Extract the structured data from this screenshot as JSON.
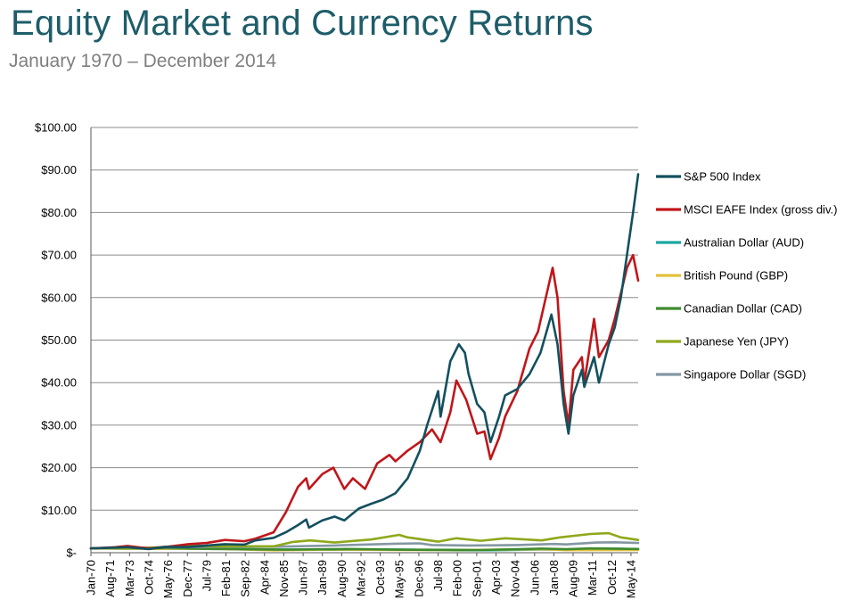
{
  "header": {
    "title": "Equity Market and Currency Returns",
    "subtitle": "January 1970 – December 2014"
  },
  "chart_data": {
    "type": "line",
    "title": "Equity Market and Currency Returns",
    "subtitle": "January 1970 – December 2014",
    "xlabel": "",
    "ylabel": "",
    "ylim": [
      0,
      100
    ],
    "xlim": [
      1970.0,
      2014.92
    ],
    "yticks": [
      {
        "value": 100,
        "label": "$100.00"
      },
      {
        "value": 90,
        "label": "$90.00"
      },
      {
        "value": 80,
        "label": "$80.00"
      },
      {
        "value": 70,
        "label": "$70.00"
      },
      {
        "value": 60,
        "label": "$60.00"
      },
      {
        "value": 50,
        "label": "$50.00"
      },
      {
        "value": 40,
        "label": "$40.00"
      },
      {
        "value": 30,
        "label": "$30.00"
      },
      {
        "value": 20,
        "label": "$20.00"
      },
      {
        "value": 10,
        "label": "$10.00"
      },
      {
        "value": 0,
        "label": "$-"
      }
    ],
    "xticks": [
      {
        "value": 1970.0,
        "label": "Jan-70"
      },
      {
        "value": 1971.58,
        "label": "Aug-71"
      },
      {
        "value": 1973.17,
        "label": "Mar-73"
      },
      {
        "value": 1974.75,
        "label": "Oct-74"
      },
      {
        "value": 1976.33,
        "label": "May-76"
      },
      {
        "value": 1977.92,
        "label": "Dec-77"
      },
      {
        "value": 1979.5,
        "label": "Jul-79"
      },
      {
        "value": 1981.08,
        "label": "Feb-81"
      },
      {
        "value": 1982.67,
        "label": "Sep-82"
      },
      {
        "value": 1984.25,
        "label": "Apr-84"
      },
      {
        "value": 1985.83,
        "label": "Nov-85"
      },
      {
        "value": 1987.42,
        "label": "Jun-87"
      },
      {
        "value": 1989.0,
        "label": "Jan-89"
      },
      {
        "value": 1990.58,
        "label": "Aug-90"
      },
      {
        "value": 1992.17,
        "label": "Mar-92"
      },
      {
        "value": 1993.75,
        "label": "Oct-93"
      },
      {
        "value": 1995.33,
        "label": "May-95"
      },
      {
        "value": 1996.92,
        "label": "Dec-96"
      },
      {
        "value": 1998.5,
        "label": "Jul-98"
      },
      {
        "value": 2000.08,
        "label": "Feb-00"
      },
      {
        "value": 2001.67,
        "label": "Sep-01"
      },
      {
        "value": 2003.25,
        "label": "Apr-03"
      },
      {
        "value": 2004.83,
        "label": "Nov-04"
      },
      {
        "value": 2006.42,
        "label": "Jun-06"
      },
      {
        "value": 2008.0,
        "label": "Jan-08"
      },
      {
        "value": 2009.58,
        "label": "Aug-09"
      },
      {
        "value": 2011.17,
        "label": "Mar-11"
      },
      {
        "value": 2012.75,
        "label": "Oct-12"
      },
      {
        "value": 2014.33,
        "label": "May-14"
      }
    ],
    "grid": "horizontal",
    "legend_position": "right",
    "series": [
      {
        "name": "S&P 500 Index",
        "color": "#13505e",
        "points": [
          [
            1970.0,
            1.0
          ],
          [
            1972.0,
            1.2
          ],
          [
            1973.0,
            1.3
          ],
          [
            1974.75,
            0.85
          ],
          [
            1976.0,
            1.35
          ],
          [
            1978.0,
            1.35
          ],
          [
            1980.0,
            1.8
          ],
          [
            1981.0,
            2.0
          ],
          [
            1982.6,
            1.9
          ],
          [
            1983.5,
            2.9
          ],
          [
            1985.0,
            3.5
          ],
          [
            1986.0,
            4.8
          ],
          [
            1987.0,
            6.5
          ],
          [
            1987.67,
            7.8
          ],
          [
            1987.9,
            5.9
          ],
          [
            1989.0,
            7.6
          ],
          [
            1990.0,
            8.5
          ],
          [
            1990.8,
            7.6
          ],
          [
            1992.0,
            10.4
          ],
          [
            1993.0,
            11.5
          ],
          [
            1994.0,
            12.5
          ],
          [
            1995.0,
            14.0
          ],
          [
            1996.0,
            17.5
          ],
          [
            1997.0,
            24.0
          ],
          [
            1997.6,
            30.0
          ],
          [
            1998.5,
            38.0
          ],
          [
            1998.7,
            32.0
          ],
          [
            1999.5,
            45.0
          ],
          [
            2000.2,
            49.0
          ],
          [
            2000.7,
            47.0
          ],
          [
            2001.0,
            42.0
          ],
          [
            2001.7,
            35.0
          ],
          [
            2002.3,
            33.0
          ],
          [
            2002.8,
            26.0
          ],
          [
            2003.5,
            32.0
          ],
          [
            2004.0,
            37.0
          ],
          [
            2005.0,
            38.5
          ],
          [
            2006.0,
            42.0
          ],
          [
            2006.9,
            47.0
          ],
          [
            2007.8,
            56.0
          ],
          [
            2008.3,
            49.0
          ],
          [
            2008.8,
            35.0
          ],
          [
            2009.2,
            28.0
          ],
          [
            2009.6,
            37.0
          ],
          [
            2010.3,
            43.0
          ],
          [
            2010.5,
            39.0
          ],
          [
            2011.3,
            46.0
          ],
          [
            2011.7,
            40.0
          ],
          [
            2012.5,
            49.0
          ],
          [
            2013.0,
            53.0
          ],
          [
            2013.5,
            60.0
          ],
          [
            2014.0,
            70.0
          ],
          [
            2014.5,
            80.0
          ],
          [
            2014.92,
            89.0
          ]
        ]
      },
      {
        "name": "MSCI EAFE Index (gross div.)",
        "color": "#c0161a",
        "points": [
          [
            1970.0,
            1.0
          ],
          [
            1972.0,
            1.3
          ],
          [
            1973.0,
            1.6
          ],
          [
            1974.75,
            1.0
          ],
          [
            1976.0,
            1.3
          ],
          [
            1978.0,
            2.0
          ],
          [
            1979.5,
            2.3
          ],
          [
            1981.0,
            3.0
          ],
          [
            1982.6,
            2.7
          ],
          [
            1983.5,
            3.3
          ],
          [
            1985.0,
            4.8
          ],
          [
            1986.0,
            9.5
          ],
          [
            1987.0,
            15.5
          ],
          [
            1987.67,
            17.5
          ],
          [
            1987.9,
            15.0
          ],
          [
            1989.0,
            18.5
          ],
          [
            1989.9,
            20.0
          ],
          [
            1990.8,
            15.0
          ],
          [
            1991.5,
            17.5
          ],
          [
            1992.5,
            15.0
          ],
          [
            1993.5,
            21.0
          ],
          [
            1994.5,
            23.0
          ],
          [
            1995.0,
            21.5
          ],
          [
            1996.0,
            24.0
          ],
          [
            1997.0,
            26.0
          ],
          [
            1998.0,
            29.0
          ],
          [
            1998.7,
            26.0
          ],
          [
            1999.5,
            33.0
          ],
          [
            2000.0,
            40.5
          ],
          [
            2000.8,
            36.0
          ],
          [
            2001.7,
            28.0
          ],
          [
            2002.3,
            28.5
          ],
          [
            2002.8,
            22.0
          ],
          [
            2003.5,
            27.0
          ],
          [
            2004.0,
            32.0
          ],
          [
            2005.0,
            38.0
          ],
          [
            2006.0,
            48.0
          ],
          [
            2006.7,
            52.0
          ],
          [
            2007.5,
            62.0
          ],
          [
            2007.9,
            67.0
          ],
          [
            2008.3,
            60.0
          ],
          [
            2008.8,
            38.0
          ],
          [
            2009.2,
            30.0
          ],
          [
            2009.6,
            43.0
          ],
          [
            2010.3,
            46.0
          ],
          [
            2010.5,
            40.0
          ],
          [
            2011.3,
            55.0
          ],
          [
            2011.7,
            46.0
          ],
          [
            2012.5,
            50.0
          ],
          [
            2013.0,
            55.0
          ],
          [
            2013.5,
            61.0
          ],
          [
            2014.0,
            67.0
          ],
          [
            2014.5,
            70.0
          ],
          [
            2014.92,
            64.0
          ]
        ]
      },
      {
        "name": "Australian Dollar (AUD)",
        "color": "#1aa89f",
        "points": [
          [
            1970.0,
            1.0
          ],
          [
            1975.0,
            1.1
          ],
          [
            1980.0,
            0.95
          ],
          [
            1985.0,
            0.75
          ],
          [
            1990.0,
            0.7
          ],
          [
            1995.0,
            0.75
          ],
          [
            2000.0,
            0.55
          ],
          [
            2003.0,
            0.6
          ],
          [
            2007.0,
            0.75
          ],
          [
            2009.0,
            0.7
          ],
          [
            2011.0,
            0.95
          ],
          [
            2013.0,
            0.95
          ],
          [
            2014.92,
            0.8
          ]
        ]
      },
      {
        "name": "British Pound (GBP)",
        "color": "#e2c239",
        "points": [
          [
            1970.0,
            1.0
          ],
          [
            1975.0,
            0.9
          ],
          [
            1980.0,
            0.95
          ],
          [
            1985.0,
            0.55
          ],
          [
            1990.0,
            0.75
          ],
          [
            1995.0,
            0.65
          ],
          [
            2000.0,
            0.62
          ],
          [
            2007.0,
            0.82
          ],
          [
            2009.0,
            0.62
          ],
          [
            2014.92,
            0.65
          ]
        ]
      },
      {
        "name": "Canadian Dollar (CAD)",
        "color": "#3f8a2e",
        "points": [
          [
            1970.0,
            1.0
          ],
          [
            1976.0,
            1.05
          ],
          [
            1980.0,
            0.88
          ],
          [
            1986.0,
            0.72
          ],
          [
            1991.0,
            0.87
          ],
          [
            1995.0,
            0.73
          ],
          [
            2002.0,
            0.63
          ],
          [
            2007.0,
            0.97
          ],
          [
            2009.0,
            0.82
          ],
          [
            2011.0,
            1.01
          ],
          [
            2014.92,
            0.87
          ]
        ]
      },
      {
        "name": "Japanese Yen (JPY)",
        "color": "#8ea81a",
        "points": [
          [
            1970.0,
            1.0
          ],
          [
            1975.0,
            1.2
          ],
          [
            1978.0,
            1.7
          ],
          [
            1980.0,
            1.5
          ],
          [
            1985.0,
            1.5
          ],
          [
            1986.5,
            2.5
          ],
          [
            1988.0,
            2.9
          ],
          [
            1990.0,
            2.4
          ],
          [
            1993.0,
            3.1
          ],
          [
            1995.3,
            4.2
          ],
          [
            1996.0,
            3.6
          ],
          [
            1998.5,
            2.6
          ],
          [
            2000.0,
            3.4
          ],
          [
            2002.0,
            2.8
          ],
          [
            2004.0,
            3.4
          ],
          [
            2007.0,
            2.9
          ],
          [
            2008.5,
            3.6
          ],
          [
            2011.0,
            4.4
          ],
          [
            2012.5,
            4.6
          ],
          [
            2013.5,
            3.6
          ],
          [
            2014.92,
            3.0
          ]
        ]
      },
      {
        "name": "Singapore Dollar (SGD)",
        "color": "#8497a3",
        "points": [
          [
            1970.0,
            1.0
          ],
          [
            1975.0,
            1.2
          ],
          [
            1980.0,
            1.4
          ],
          [
            1985.0,
            1.4
          ],
          [
            1990.0,
            1.7
          ],
          [
            1995.0,
            2.1
          ],
          [
            1997.0,
            2.2
          ],
          [
            1998.0,
            1.8
          ],
          [
            2001.0,
            1.7
          ],
          [
            2005.0,
            1.8
          ],
          [
            2008.0,
            2.05
          ],
          [
            2009.0,
            1.95
          ],
          [
            2011.5,
            2.4
          ],
          [
            2013.0,
            2.45
          ],
          [
            2014.92,
            2.3
          ]
        ]
      }
    ]
  }
}
